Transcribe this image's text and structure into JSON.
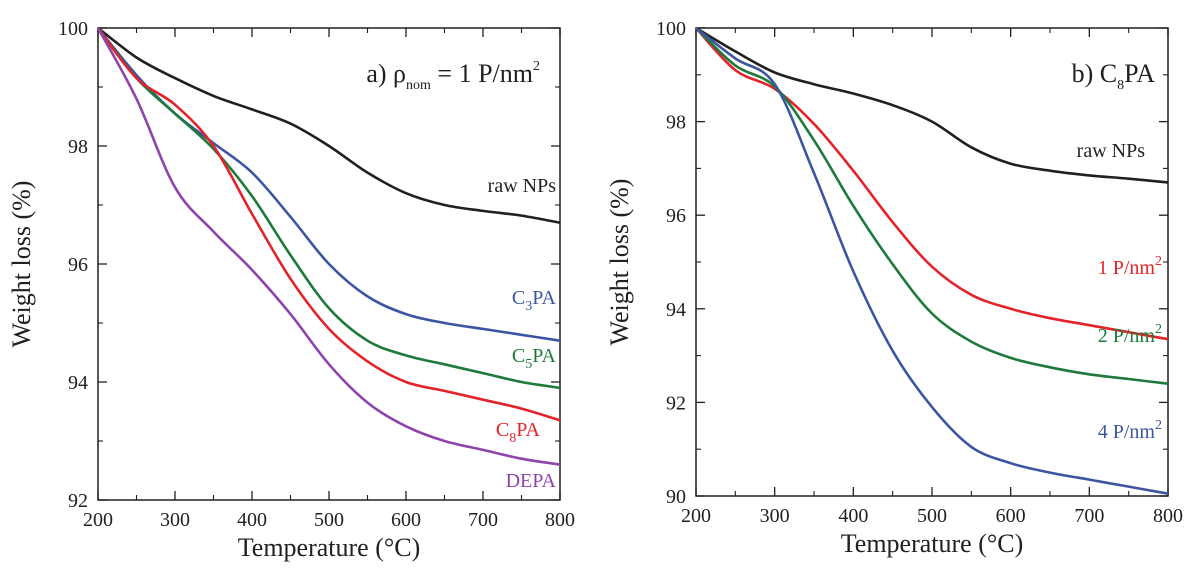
{
  "chart_data": [
    {
      "type": "line",
      "title": "a)  ρ",
      "title_sub": "nom",
      "title_rest": " = 1 P/nm",
      "title_sup": "2",
      "xlabel": "Temperature (°C)",
      "ylabel": "Weight loss (%)",
      "xlim": [
        200,
        800
      ],
      "ylim": [
        92,
        100
      ],
      "xticks": [
        200,
        300,
        400,
        500,
        600,
        700,
        800
      ],
      "yticks": [
        92,
        94,
        96,
        98,
        100
      ],
      "grid": false,
      "series": [
        {
          "label_main": "raw NPs",
          "label_sub": "",
          "label_rest": "",
          "label_sup": "",
          "color": "#231f20",
          "x": [
            200,
            250,
            300,
            350,
            400,
            450,
            500,
            550,
            600,
            650,
            700,
            750,
            800
          ],
          "y": [
            100,
            99.5,
            99.15,
            98.85,
            98.62,
            98.38,
            98.0,
            97.55,
            97.2,
            97.0,
            96.9,
            96.82,
            96.7
          ]
        },
        {
          "label_main": "C",
          "label_sub": "3",
          "label_rest": "PA",
          "label_sup": "",
          "color": "#3b55a3",
          "x": [
            200,
            250,
            300,
            350,
            400,
            450,
            500,
            550,
            600,
            650,
            700,
            750,
            800
          ],
          "y": [
            100,
            99.2,
            98.55,
            98.05,
            97.55,
            96.8,
            96.0,
            95.45,
            95.15,
            95.0,
            94.9,
            94.8,
            94.7
          ]
        },
        {
          "label_main": "C",
          "label_sub": "5",
          "label_rest": "PA",
          "label_sup": "",
          "color": "#1d7a3a",
          "x": [
            200,
            250,
            300,
            350,
            400,
            450,
            500,
            550,
            600,
            650,
            700,
            750,
            800
          ],
          "y": [
            100,
            99.15,
            98.55,
            97.95,
            97.15,
            96.15,
            95.25,
            94.7,
            94.45,
            94.3,
            94.15,
            94.0,
            93.9
          ]
        },
        {
          "label_main": "C",
          "label_sub": "8",
          "label_rest": "PA",
          "label_sup": "",
          "color": "#e3232a",
          "x": [
            200,
            250,
            300,
            350,
            400,
            450,
            500,
            550,
            600,
            650,
            700,
            750,
            800
          ],
          "y": [
            100,
            99.15,
            98.7,
            98.0,
            96.85,
            95.75,
            94.9,
            94.35,
            94.0,
            93.85,
            93.7,
            93.55,
            93.35
          ]
        },
        {
          "label_main": "DEPA",
          "label_sub": "",
          "label_rest": "",
          "label_sup": "",
          "color": "#8e44ad",
          "x": [
            200,
            250,
            300,
            350,
            400,
            450,
            500,
            550,
            600,
            650,
            700,
            750,
            800
          ],
          "y": [
            100,
            98.8,
            97.3,
            96.55,
            95.9,
            95.15,
            94.3,
            93.65,
            93.25,
            93.0,
            92.85,
            92.7,
            92.6
          ]
        }
      ]
    },
    {
      "type": "line",
      "title": "b)  C",
      "title_sub": "8",
      "title_rest": "PA",
      "title_sup": "",
      "xlabel": "Temperature (°C)",
      "ylabel": "Weight loss (%)",
      "xlim": [
        200,
        800
      ],
      "ylim": [
        90,
        100
      ],
      "xticks": [
        200,
        300,
        400,
        500,
        600,
        700,
        800
      ],
      "yticks": [
        90,
        92,
        94,
        96,
        98,
        100
      ],
      "grid": false,
      "series": [
        {
          "label_main": "raw NPs",
          "label_sub": "",
          "label_rest": "",
          "label_sup": "",
          "color": "#231f20",
          "x": [
            200,
            250,
            300,
            350,
            400,
            450,
            500,
            550,
            600,
            650,
            700,
            750,
            800
          ],
          "y": [
            100,
            99.5,
            99.05,
            98.8,
            98.6,
            98.35,
            98.0,
            97.45,
            97.1,
            96.95,
            96.85,
            96.78,
            96.7
          ]
        },
        {
          "label_main": "1 P/nm",
          "label_sub": "",
          "label_rest": "",
          "label_sup": "2",
          "color": "#e3232a",
          "x": [
            200,
            250,
            300,
            350,
            400,
            450,
            500,
            550,
            600,
            650,
            700,
            750,
            800
          ],
          "y": [
            100,
            99.1,
            98.7,
            97.95,
            96.95,
            95.85,
            94.9,
            94.3,
            94.0,
            93.8,
            93.65,
            93.5,
            93.35
          ]
        },
        {
          "label_main": "2 P/nm",
          "label_sub": "",
          "label_rest": "",
          "label_sup": "2",
          "color": "#1d7a3a",
          "x": [
            200,
            250,
            300,
            350,
            400,
            450,
            500,
            550,
            600,
            650,
            700,
            750,
            800
          ],
          "y": [
            100,
            99.2,
            98.75,
            97.6,
            96.2,
            94.95,
            93.9,
            93.3,
            92.95,
            92.75,
            92.6,
            92.5,
            92.4
          ]
        },
        {
          "label_main": "4 P/nm",
          "label_sub": "",
          "label_rest": "",
          "label_sup": "2",
          "color": "#3b55a3",
          "x": [
            200,
            250,
            300,
            350,
            400,
            450,
            500,
            550,
            600,
            650,
            700,
            750,
            800
          ],
          "y": [
            100,
            99.35,
            98.8,
            96.9,
            94.8,
            93.1,
            91.9,
            91.05,
            90.7,
            90.5,
            90.35,
            90.2,
            90.05
          ]
        }
      ]
    }
  ]
}
